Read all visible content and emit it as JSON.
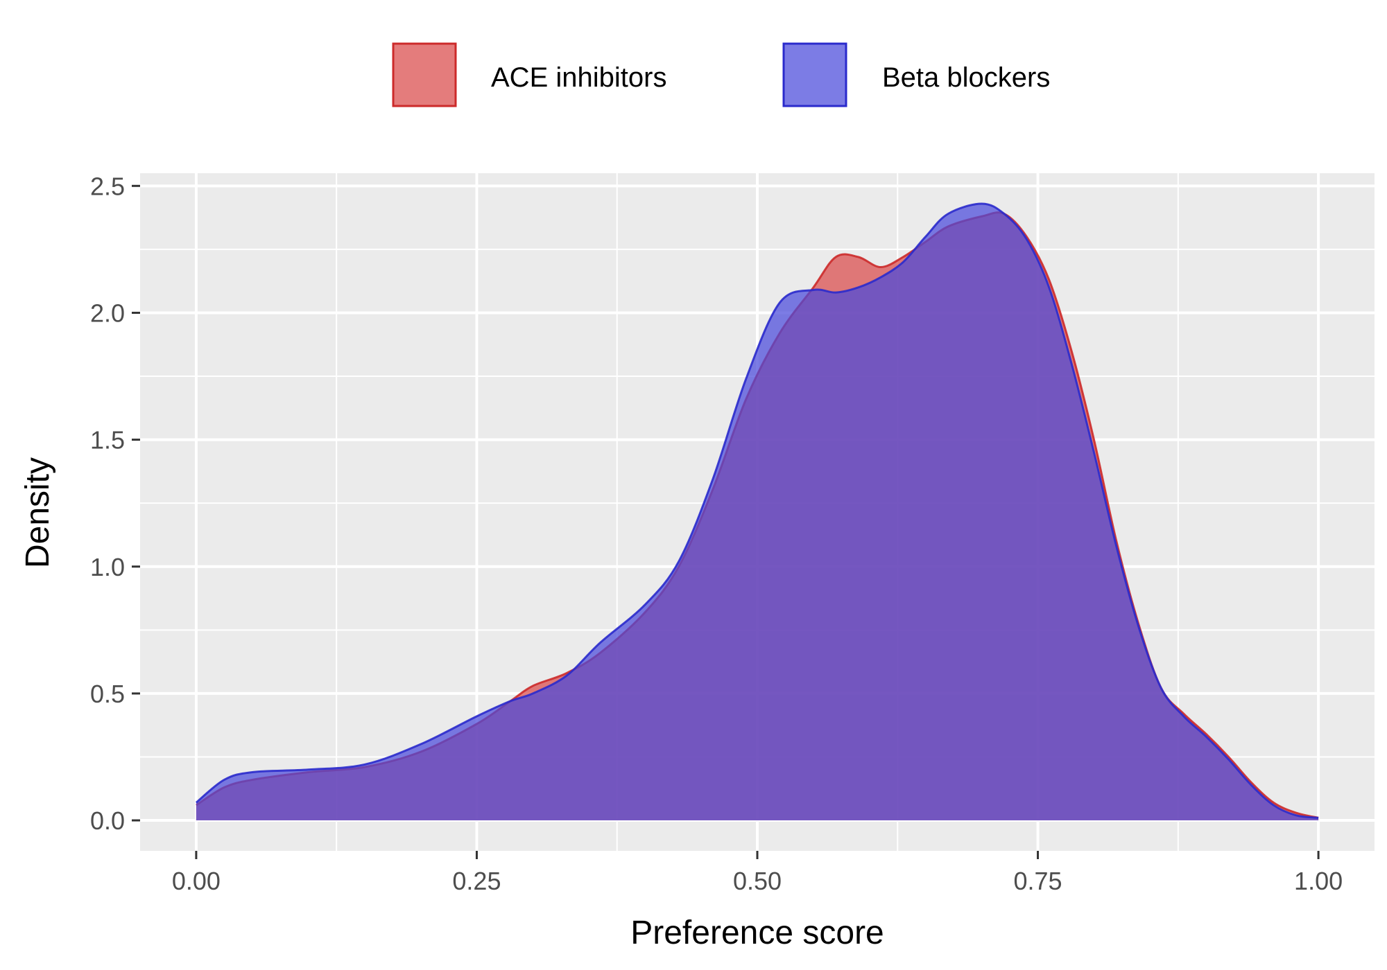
{
  "chart_data": {
    "type": "area",
    "subtype": "density",
    "xlabel": "Preference score",
    "ylabel": "Density",
    "xlim": [
      -0.05,
      1.05
    ],
    "ylim": [
      -0.12,
      2.55
    ],
    "x_ticks": [
      0.0,
      0.25,
      0.5,
      0.75,
      1.0
    ],
    "x_tick_labels": [
      "0.00",
      "0.25",
      "0.50",
      "0.75",
      "1.00"
    ],
    "y_ticks": [
      0.0,
      0.5,
      1.0,
      1.5,
      2.0,
      2.5
    ],
    "y_tick_labels": [
      "0.0",
      "0.5",
      "1.0",
      "1.5",
      "2.0",
      "2.5"
    ],
    "grid": true,
    "legend_position": "top",
    "background": "#ebebeb",
    "series": [
      {
        "name": "ACE inhibitors",
        "fill": "#d94a4a",
        "stroke": "#cc2a2a",
        "x": [
          0.0,
          0.025,
          0.05,
          0.1,
          0.15,
          0.2,
          0.25,
          0.28,
          0.3,
          0.33,
          0.36,
          0.4,
          0.43,
          0.46,
          0.49,
          0.52,
          0.55,
          0.57,
          0.59,
          0.61,
          0.63,
          0.65,
          0.67,
          0.7,
          0.72,
          0.74,
          0.76,
          0.78,
          0.8,
          0.82,
          0.84,
          0.86,
          0.88,
          0.9,
          0.92,
          0.94,
          0.96,
          0.98,
          1.0
        ],
        "y": [
          0.06,
          0.13,
          0.16,
          0.19,
          0.21,
          0.27,
          0.38,
          0.47,
          0.53,
          0.58,
          0.66,
          0.82,
          1.0,
          1.3,
          1.66,
          1.92,
          2.1,
          2.22,
          2.22,
          2.18,
          2.22,
          2.28,
          2.34,
          2.38,
          2.39,
          2.3,
          2.13,
          1.85,
          1.5,
          1.1,
          0.77,
          0.52,
          0.42,
          0.34,
          0.25,
          0.15,
          0.07,
          0.03,
          0.01
        ]
      },
      {
        "name": "Beta blockers",
        "fill": "#4a4adb",
        "stroke": "#2a2acc",
        "x": [
          0.0,
          0.025,
          0.05,
          0.1,
          0.15,
          0.2,
          0.25,
          0.28,
          0.3,
          0.33,
          0.36,
          0.4,
          0.43,
          0.46,
          0.49,
          0.52,
          0.55,
          0.57,
          0.59,
          0.61,
          0.63,
          0.65,
          0.67,
          0.7,
          0.72,
          0.74,
          0.76,
          0.78,
          0.8,
          0.82,
          0.84,
          0.86,
          0.88,
          0.9,
          0.92,
          0.94,
          0.96,
          0.98,
          1.0
        ],
        "y": [
          0.07,
          0.16,
          0.19,
          0.2,
          0.22,
          0.3,
          0.41,
          0.47,
          0.5,
          0.57,
          0.7,
          0.85,
          1.02,
          1.34,
          1.74,
          2.04,
          2.09,
          2.08,
          2.1,
          2.14,
          2.2,
          2.3,
          2.39,
          2.43,
          2.39,
          2.29,
          2.1,
          1.8,
          1.45,
          1.08,
          0.76,
          0.52,
          0.41,
          0.33,
          0.24,
          0.14,
          0.06,
          0.02,
          0.01
        ]
      }
    ]
  }
}
